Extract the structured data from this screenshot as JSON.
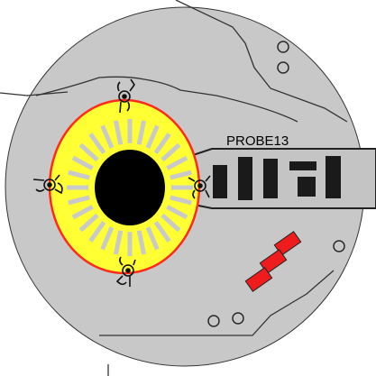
{
  "probe": {
    "label": "PROBE13"
  },
  "colors": {
    "background": "#ffffff",
    "disc_fill": "#c8c8c8",
    "line": "#3a3a3a",
    "housing_outline": "#ff2a1a",
    "housing_fill": "#ffff33",
    "ray": "#c9c9c9",
    "core": "#000000",
    "connector_blocks": "#1a1a1a",
    "indicator_red": "#ee1c1c"
  },
  "icons": {
    "clip_connectors": [
      "clip-connector-top",
      "clip-connector-left",
      "clip-connector-right",
      "clip-connector-bottom"
    ],
    "holes": [
      "hole-upper-1",
      "hole-upper-2",
      "hole-right",
      "hole-lower-1",
      "hole-lower-2"
    ]
  },
  "indicator_count": 3,
  "connector_block_count": 5
}
